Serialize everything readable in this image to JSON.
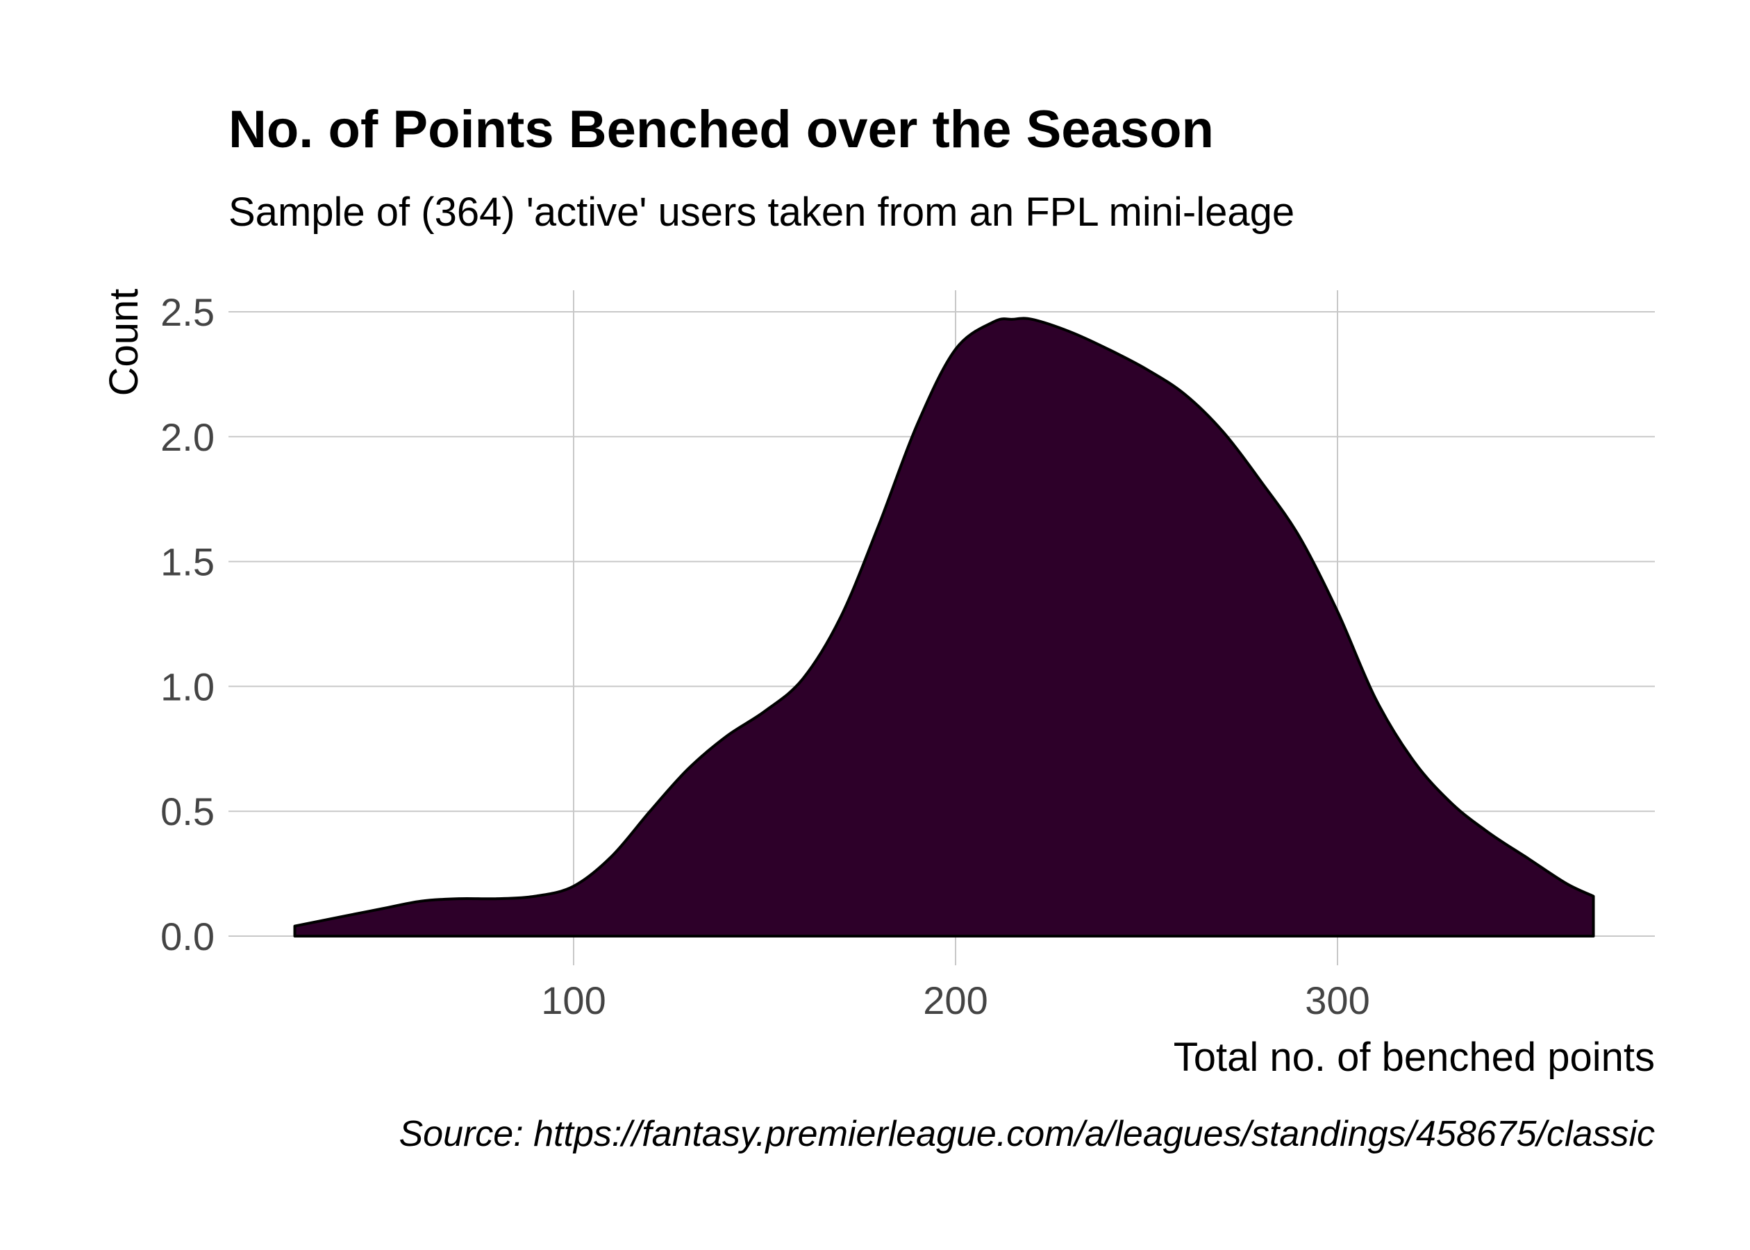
{
  "chart_data": {
    "type": "area",
    "title": "No. of Points Benched over the Season",
    "subtitle": "Sample of (364) 'active' users taken from an FPL mini-leage",
    "xlabel": "Total no. of benched points",
    "ylabel": "Count",
    "caption": "Source: https://fantasy.premierleague.com/a/leagues/standings/458675/classic",
    "xlim": [
      10,
      378
    ],
    "ylim": [
      0,
      2.6
    ],
    "x_ticks": [
      100,
      200,
      300
    ],
    "x_tick_labels": [
      "100",
      "200",
      "300"
    ],
    "y_ticks": [
      0,
      0.5,
      1,
      1.5,
      2,
      2.5
    ],
    "y_tick_labels": [
      "0.0",
      "0.5",
      "1.0",
      "1.5",
      "2.0",
      "2.5"
    ],
    "grid": true,
    "fill_color": "#2d0029",
    "line_color": "#000000",
    "x": [
      27,
      40,
      50,
      60,
      70,
      80,
      90,
      100,
      110,
      120,
      130,
      140,
      150,
      160,
      170,
      180,
      190,
      200,
      210,
      215,
      220,
      230,
      240,
      250,
      260,
      270,
      280,
      290,
      300,
      310,
      320,
      330,
      340,
      350,
      360,
      367
    ],
    "values": [
      0.04,
      0.08,
      0.11,
      0.14,
      0.15,
      0.15,
      0.16,
      0.2,
      0.32,
      0.5,
      0.67,
      0.8,
      0.9,
      1.03,
      1.28,
      1.65,
      2.05,
      2.35,
      2.46,
      2.47,
      2.47,
      2.42,
      2.35,
      2.27,
      2.17,
      2.02,
      1.82,
      1.6,
      1.3,
      0.95,
      0.7,
      0.53,
      0.41,
      0.31,
      0.21,
      0.16
    ]
  }
}
